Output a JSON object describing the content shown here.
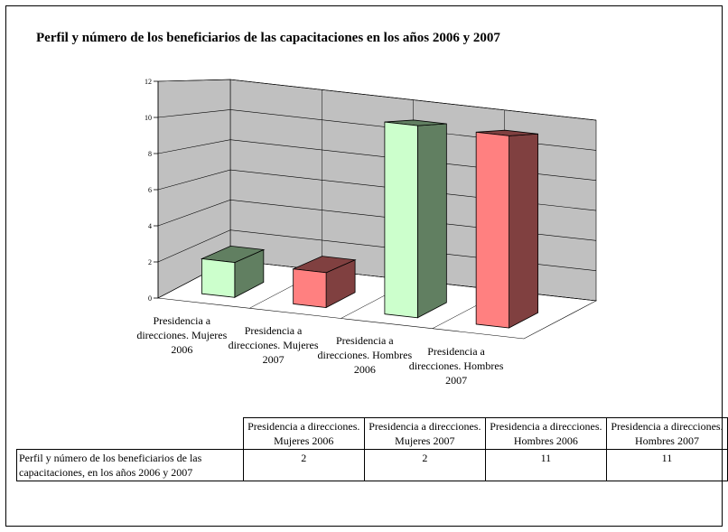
{
  "chart_data": {
    "type": "bar3d",
    "title": "Perfil y número de los beneficiarios de las capacitaciones en los años 2006 y 2007",
    "categories": [
      "Presidencia a direcciones. Mujeres 2006",
      "Presidencia a direcciones. Mujeres 2007",
      "Presidencia a direcciones. Hombres 2006",
      "Presidencia a direcciones. Hombres 2007"
    ],
    "series": [
      {
        "name": "Perfil y número de los beneficiarios de las capacitaciones, en los años 2006 y 2007",
        "values": [
          2,
          2,
          11,
          11
        ]
      }
    ],
    "colors": [
      "#ccffcc",
      "#ff8080",
      "#ccffcc",
      "#ff8080"
    ],
    "side_colors": [
      "#617f61",
      "#804040",
      "#617f61",
      "#804040"
    ],
    "ylim": [
      0,
      12
    ],
    "yticks": [
      0,
      2,
      4,
      6,
      8,
      10,
      12
    ],
    "grid": true
  }
}
